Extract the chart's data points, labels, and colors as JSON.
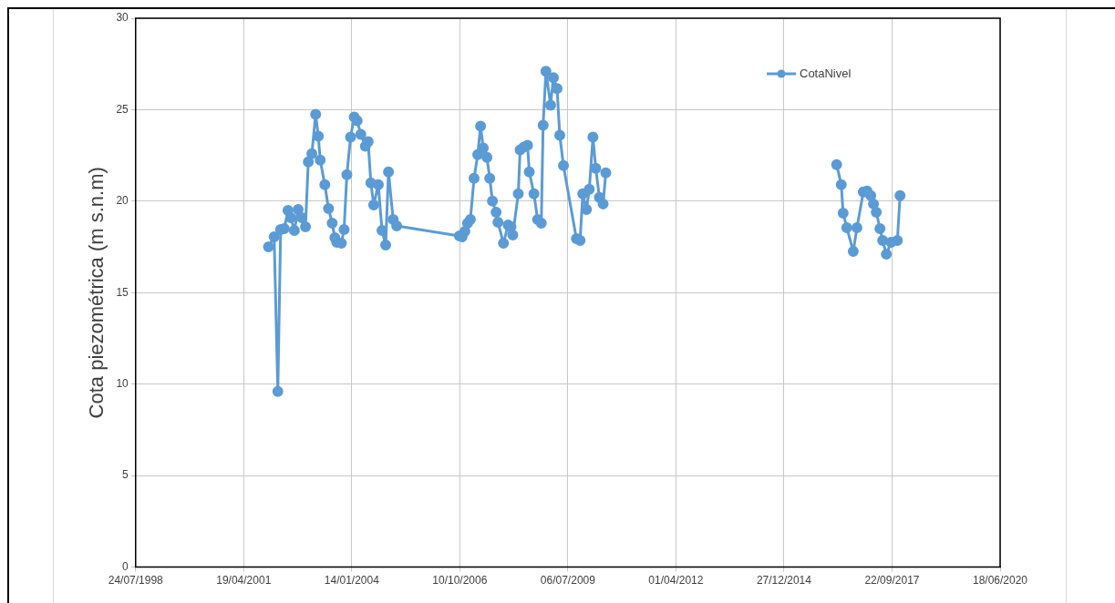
{
  "chart_data": {
    "type": "line",
    "ylabel": "Cota piezométrica (m s.n.m)",
    "x": [
      "2001-12-05",
      "2002-01-26",
      "2002-03-01",
      "2002-03-27",
      "2002-04-30",
      "2002-06-03",
      "2002-06-29",
      "2002-08-01",
      "2002-09-05",
      "2002-10-09",
      "2002-11-12",
      "2002-12-08",
      "2003-01-10",
      "2003-02-14",
      "2003-03-11",
      "2003-03-28",
      "2003-05-10",
      "2003-06-13",
      "2003-07-17",
      "2003-08-11",
      "2003-08-28",
      "2003-10-10",
      "2003-11-04",
      "2003-11-30",
      "2004-01-03",
      "2004-02-06",
      "2004-03-04",
      "2004-04-07",
      "2004-05-19",
      "2004-06-14",
      "2004-07-09",
      "2004-08-04",
      "2004-09-16",
      "2004-10-20",
      "2004-11-23",
      "2004-12-19",
      "2005-01-31",
      "2005-03-05",
      "2006-10-06",
      "2006-10-31",
      "2006-11-26",
      "2006-12-21",
      "2007-01-16",
      "2007-02-19",
      "2007-03-25",
      "2007-04-20",
      "2007-05-15",
      "2007-06-18",
      "2007-07-14",
      "2007-08-08",
      "2007-09-11",
      "2007-09-28",
      "2007-11-18",
      "2007-12-31",
      "2008-01-26",
      "2008-02-12",
      "2008-04-03",
      "2008-04-20",
      "2008-05-24",
      "2008-06-28",
      "2008-07-14",
      "2008-08-26",
      "2008-09-29",
      "2008-11-02",
      "2008-11-19",
      "2008-12-15",
      "2009-01-27",
      "2009-02-22",
      "2009-03-28",
      "2009-04-22",
      "2009-05-26",
      "2009-09-23",
      "2009-10-27",
      "2009-11-21",
      "2009-12-25",
      "2010-01-20",
      "2010-02-23",
      "2010-03-21",
      "2010-04-24",
      "2010-05-28",
      "2010-06-22",
      "2012-01-01",
      "2016-04-27",
      "2016-06-09",
      "2016-06-26",
      "2016-07-30",
      "2016-09-28",
      "2016-11-01",
      "2016-12-30",
      "2017-02-03",
      "2017-03-09",
      "2017-04-03",
      "2017-04-29",
      "2017-06-02",
      "2017-06-27",
      "2017-07-31",
      "2017-09-13",
      "2017-11-10",
      "2017-12-05"
    ],
    "series": [
      {
        "name": "CotaNivel",
        "color": "#5b9bd5",
        "values": [
          17.5,
          18.05,
          9.6,
          18.45,
          18.5,
          19.5,
          19.1,
          18.4,
          19.55,
          19.1,
          18.6,
          22.15,
          22.6,
          24.75,
          23.55,
          22.25,
          20.9,
          19.6,
          18.8,
          18.0,
          17.75,
          17.7,
          18.45,
          21.45,
          23.5,
          24.6,
          24.4,
          23.65,
          23.0,
          23.25,
          21.0,
          19.8,
          20.9,
          18.4,
          17.6,
          21.6,
          19.0,
          18.65,
          18.1,
          18.05,
          18.35,
          18.8,
          19.0,
          21.25,
          22.55,
          24.1,
          22.9,
          22.4,
          21.25,
          20.0,
          19.4,
          18.85,
          17.7,
          18.7,
          18.6,
          18.15,
          20.4,
          22.8,
          22.95,
          23.05,
          21.6,
          20.4,
          19.0,
          18.8,
          24.15,
          27.1,
          25.25,
          26.75,
          26.15,
          23.6,
          21.95,
          17.95,
          17.85,
          20.4,
          19.55,
          20.65,
          23.5,
          21.8,
          20.2,
          19.85,
          21.55,
          null,
          22.0,
          20.9,
          19.35,
          18.55,
          17.25,
          18.55,
          20.5,
          20.55,
          20.3,
          19.85,
          19.4,
          18.5,
          17.85,
          17.1,
          17.75,
          17.85,
          20.3
        ]
      }
    ],
    "xlim": [
      "1998-07-24",
      "2020-06-18"
    ],
    "xticks": [
      {
        "value": "1998-07-24",
        "label": "24/07/1998"
      },
      {
        "value": "2001-04-19",
        "label": "19/04/2001"
      },
      {
        "value": "2004-01-14",
        "label": "14/01/2004"
      },
      {
        "value": "2006-10-10",
        "label": "10/10/2006"
      },
      {
        "value": "2009-07-06",
        "label": "06/07/2009"
      },
      {
        "value": "2012-04-01",
        "label": "01/04/2012"
      },
      {
        "value": "2014-12-27",
        "label": "27/12/2014"
      },
      {
        "value": "2017-09-22",
        "label": "22/09/2017"
      },
      {
        "value": "2020-06-18",
        "label": "18/06/2020"
      }
    ],
    "ylim": [
      0,
      30
    ],
    "yticks": [
      0,
      5,
      10,
      15,
      20,
      25,
      30
    ],
    "grid": true,
    "legend": "top right",
    "marker": "circle",
    "line_style": "solid"
  }
}
